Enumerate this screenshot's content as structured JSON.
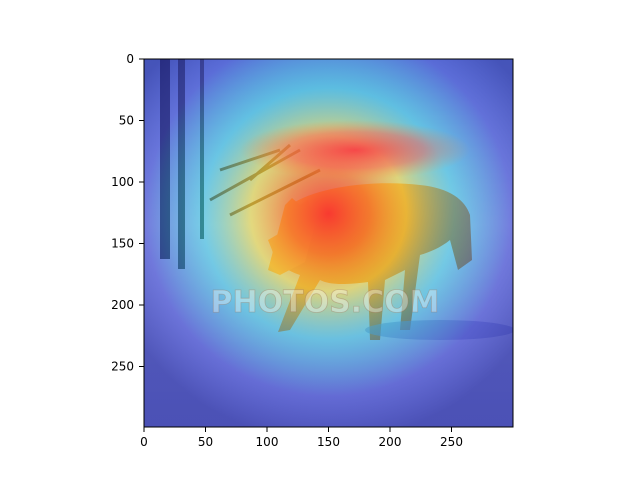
{
  "image": {
    "subject": "red-fox-in-snow-with-attention-heatmap-overlay",
    "watermark": "PHOTOS.COM"
  },
  "axes": {
    "x_ticks": [
      "0",
      "50",
      "100",
      "150",
      "200",
      "250"
    ],
    "y_ticks": [
      "0",
      "50",
      "100",
      "150",
      "200",
      "250"
    ]
  },
  "colors": {
    "snow": "#c9d6ea",
    "fox": "#c4692c",
    "heat_hot": "#ff3c3c",
    "heat_mid": "#ffe23a",
    "heat_cool": "#27d0e8",
    "heat_cold": "#3b3bd6"
  }
}
